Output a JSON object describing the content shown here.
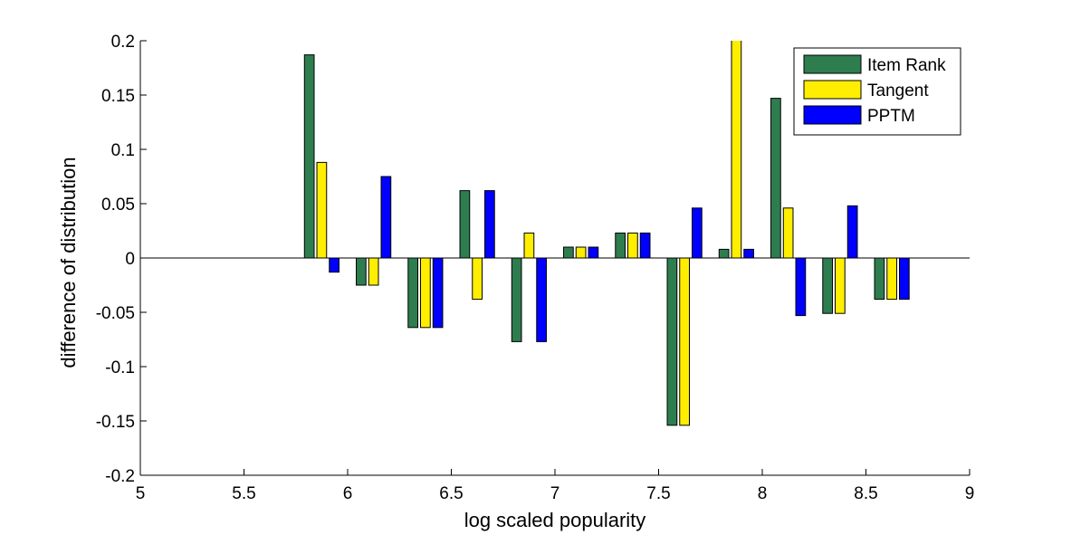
{
  "chart_data": {
    "type": "bar",
    "title": "",
    "xlabel": "log scaled popularity",
    "ylabel": "difference of distribution",
    "xlim": [
      5,
      9
    ],
    "ylim": [
      -0.2,
      0.2
    ],
    "x_ticks": [
      5,
      5.5,
      6,
      6.5,
      7,
      7.5,
      8,
      8.5,
      9
    ],
    "x_tick_labels": [
      "5",
      "5.5",
      "6",
      "6.5",
      "7",
      "7.5",
      "8",
      "8.5",
      "9"
    ],
    "y_ticks": [
      -0.2,
      -0.15,
      -0.1,
      -0.05,
      0,
      0.05,
      0.1,
      0.15,
      0.2
    ],
    "y_tick_labels": [
      "-0.2",
      "-0.15",
      "-0.1",
      "-0.05",
      "0",
      "0.05",
      "0.1",
      "0.15",
      "0.2"
    ],
    "x": [
      5.875,
      6.125,
      6.375,
      6.625,
      6.875,
      7.125,
      7.375,
      7.625,
      7.875,
      8.125,
      8.375,
      8.625
    ],
    "bar_group_width": 0.18,
    "legend_position": "top-right",
    "grid": false,
    "series": [
      {
        "name": "Item Rank",
        "color": "#2e7d4f",
        "values": [
          0.187,
          -0.025,
          -0.064,
          0.062,
          -0.077,
          0.01,
          0.023,
          -0.154,
          0.008,
          0.147,
          -0.051,
          -0.038
        ]
      },
      {
        "name": "Tangent",
        "color": "#ffee00",
        "values": [
          0.088,
          -0.025,
          -0.064,
          -0.038,
          0.023,
          0.01,
          0.023,
          -0.154,
          0.205,
          0.046,
          -0.051,
          -0.038
        ]
      },
      {
        "name": "PPTM",
        "color": "#0000ff",
        "values": [
          -0.013,
          0.075,
          -0.064,
          0.062,
          -0.077,
          0.01,
          0.023,
          0.046,
          0.008,
          -0.053,
          0.048,
          -0.038
        ]
      }
    ]
  }
}
